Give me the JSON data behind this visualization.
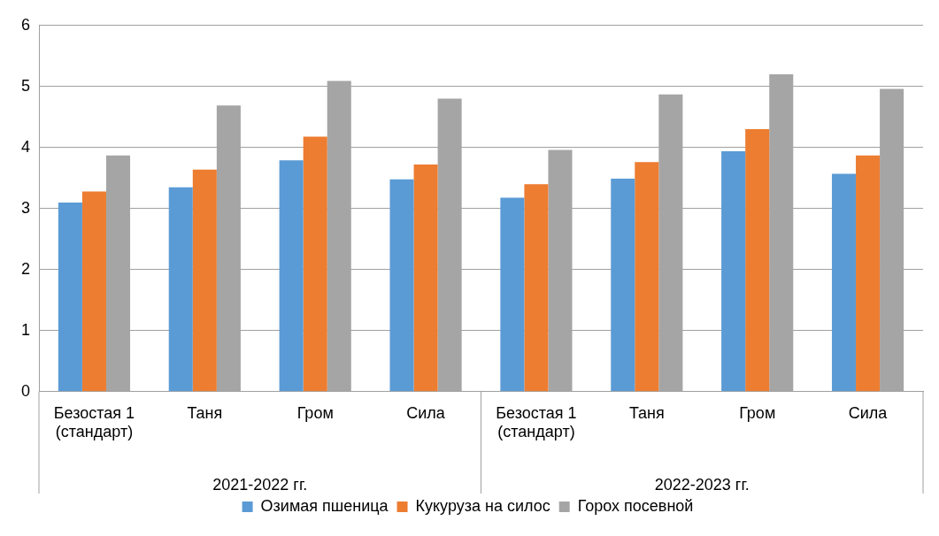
{
  "chart_data": {
    "type": "bar",
    "categories": [
      "Безостая 1 (стандарт)",
      "Таня",
      "Гром",
      "Сила",
      "Безостая 1 (стандарт)",
      "Таня",
      "Гром",
      "Сила"
    ],
    "series": [
      {
        "name": "Озимая пшеница",
        "color": "#5b9bd5",
        "values": [
          3.1,
          3.35,
          3.79,
          3.48,
          3.18,
          3.49,
          3.94,
          3.57
        ]
      },
      {
        "name": "Кукуруза на силос",
        "color": "#ed7d31",
        "values": [
          3.28,
          3.64,
          4.18,
          3.72,
          3.4,
          3.76,
          4.3,
          3.87
        ]
      },
      {
        "name": "Горох посевной",
        "color": "#a5a5a5",
        "values": [
          3.87,
          4.69,
          5.09,
          4.8,
          3.96,
          4.87,
          5.2,
          4.96
        ]
      }
    ],
    "annotations": [
      "2021-2022 гг.",
      "2022-2023 гг."
    ],
    "ylim": [
      0,
      6
    ],
    "yticks": [
      0,
      1,
      2,
      3,
      4,
      5,
      6
    ],
    "grid": "y",
    "legend": "bottom"
  }
}
